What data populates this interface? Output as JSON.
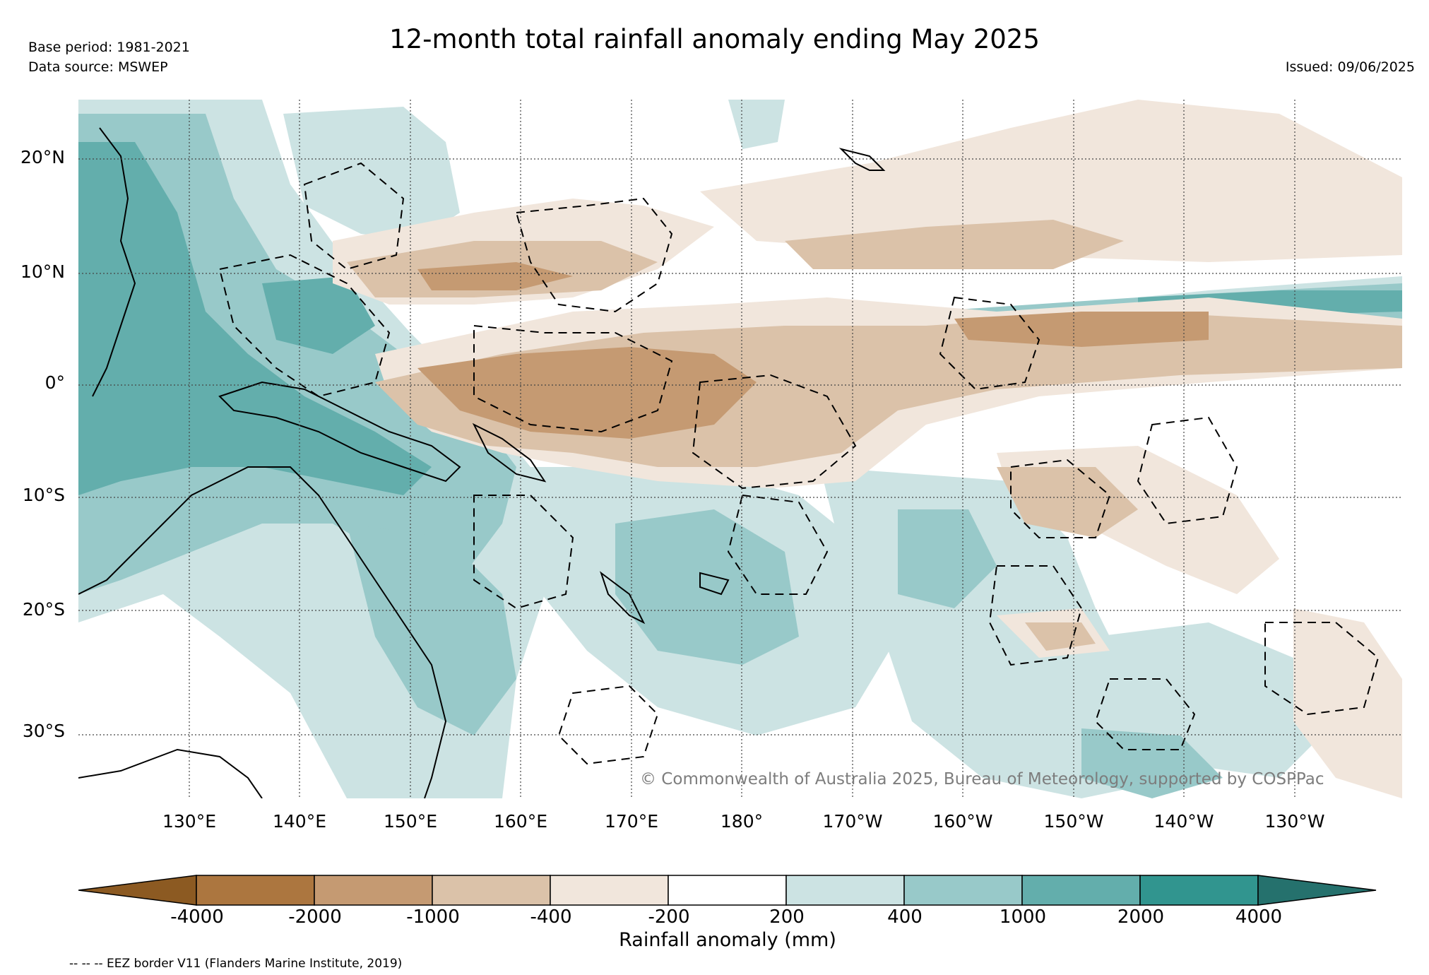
{
  "header": {
    "title": "12-month total rainfall anomaly ending May 2025",
    "base_period": "Base period: 1981-2021",
    "data_source": "Data source: MSWEP",
    "issued": "Issued: 09/06/2025"
  },
  "map": {
    "lat_labels": [
      "20°N",
      "10°N",
      "0°",
      "10°S",
      "20°S",
      "30°S"
    ],
    "lon_labels": [
      "130°E",
      "140°E",
      "150°E",
      "160°E",
      "170°E",
      "180°",
      "170°W",
      "160°W",
      "150°W",
      "140°W",
      "130°W"
    ],
    "copyright": "© Commonwealth of Australia 2025, Bureau of Meteorology, supported by COSPPac"
  },
  "colorbar": {
    "title": "Rainfall anomaly (mm)",
    "tick_labels": [
      "-4000",
      "-2000",
      "-1000",
      "-400",
      "-200",
      "200",
      "400",
      "1000",
      "2000",
      "4000"
    ],
    "colors": [
      "#8c5a22",
      "#ac763f",
      "#c59a72",
      "#dbc2a9",
      "#f1e6dc",
      "#ffffff",
      "#cce3e3",
      "#98c9c9",
      "#63aeac",
      "#31958f",
      "#25716d"
    ]
  },
  "footer": {
    "eez_note": "-- -- -- EEZ border V11 (Flanders Marine Institute, 2019)"
  }
}
